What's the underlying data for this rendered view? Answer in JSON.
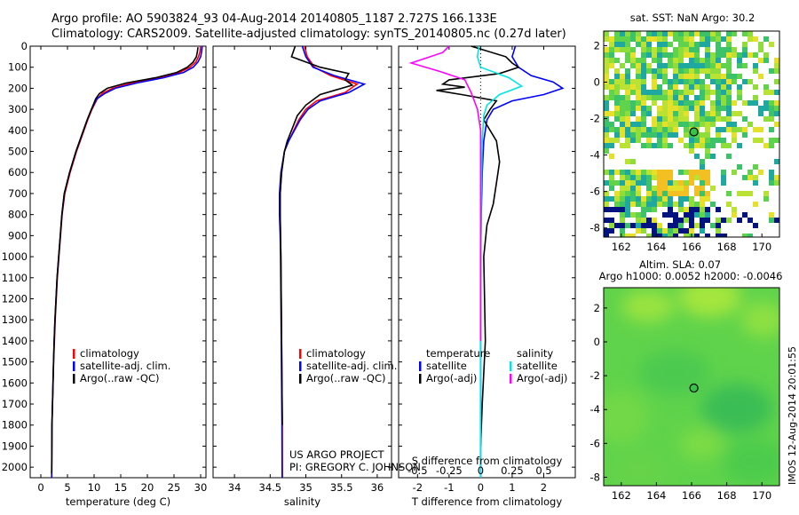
{
  "header": {
    "line1": "Argo profile: AO 5903824_93 04-Aug-2014 20140805_1187 2.727S 166.133E",
    "line2": "Climatology: CARS2009. Satellite-adjusted climatology: synTS_20140805.nc (0.27d later)"
  },
  "credit": {
    "line1": "US ARGO PROJECT",
    "line2": "PI: GREGORY C. JOHNSON"
  },
  "stamp": "IMOS 12-Aug-2014 20:01:55",
  "chart_data": [
    {
      "type": "line",
      "xlabel": "temperature (deg C)",
      "ylabel": "",
      "xlim": [
        -2,
        31
      ],
      "ylim": [
        2050,
        0
      ],
      "xticks": [
        0,
        5,
        10,
        15,
        20,
        25,
        30
      ],
      "yticks": [
        0,
        100,
        200,
        300,
        400,
        500,
        600,
        700,
        800,
        900,
        1000,
        1100,
        1200,
        1300,
        1400,
        1500,
        1600,
        1700,
        1800,
        1900,
        2000
      ],
      "legend": [
        "climatology",
        "satellite-adj. clim.",
        "Argo(..raw -QC)"
      ],
      "series": [
        {
          "color": "#ff0000",
          "x": [
            30.0,
            29.9,
            29.6,
            29.1,
            28.0,
            26.0,
            22.0,
            17.0,
            13.5,
            11.5,
            10.6,
            9.6,
            8.8,
            8.1,
            7.4,
            6.7,
            6.1,
            5.5,
            5.0,
            4.5,
            4.0,
            3.7,
            3.4,
            3.1,
            2.9,
            2.7,
            2.55,
            2.4,
            2.3,
            2.2,
            2.1,
            2.05
          ],
          "y": [
            0,
            25,
            50,
            75,
            100,
            125,
            150,
            175,
            200,
            225,
            250,
            300,
            350,
            400,
            450,
            500,
            550,
            600,
            650,
            700,
            800,
            900,
            1000,
            1100,
            1200,
            1300,
            1400,
            1500,
            1600,
            1700,
            1800,
            2050
          ]
        },
        {
          "color": "#0000ff",
          "x": [
            30.3,
            30.2,
            30.0,
            29.5,
            28.6,
            26.8,
            23.0,
            18.0,
            14.0,
            12.0,
            10.5,
            9.5,
            8.7,
            8.0,
            7.3,
            6.6,
            6.0,
            5.4,
            4.9,
            4.4,
            3.95,
            3.65,
            3.35,
            3.05,
            2.85,
            2.65,
            2.5,
            2.38,
            2.28,
            2.18,
            2.08,
            2.03
          ],
          "y": [
            0,
            25,
            50,
            75,
            100,
            125,
            150,
            175,
            200,
            225,
            250,
            300,
            350,
            400,
            450,
            500,
            550,
            600,
            650,
            700,
            800,
            900,
            1000,
            1100,
            1200,
            1300,
            1400,
            1500,
            1600,
            1700,
            1800,
            2050
          ]
        },
        {
          "color": "#000000",
          "x": [
            29.5,
            29.4,
            29.2,
            28.6,
            27.5,
            25.5,
            21.5,
            16.0,
            12.5,
            11.0,
            10.3,
            9.5,
            8.7,
            8.0,
            7.3,
            6.6,
            6.0,
            5.4,
            4.9,
            4.4,
            3.95,
            3.65,
            3.35,
            3.05,
            2.85,
            2.65,
            2.5,
            2.38,
            2.28,
            2.18,
            2.08,
            2.03
          ],
          "y": [
            5,
            25,
            50,
            75,
            100,
            125,
            150,
            175,
            200,
            225,
            250,
            300,
            350,
            400,
            450,
            500,
            550,
            600,
            650,
            700,
            800,
            900,
            1000,
            1100,
            1200,
            1300,
            1400,
            1500,
            1600,
            1700,
            1800,
            2030
          ]
        }
      ]
    },
    {
      "type": "line",
      "xlabel": "salinity",
      "ylabel": "",
      "xlim": [
        33.7,
        36.2
      ],
      "ylim": [
        2050,
        0
      ],
      "xticks": [
        34,
        34.5,
        35,
        35.5,
        36
      ],
      "legend": [
        "climatology",
        "satellite-adj. clim.",
        "Argo(..raw -QC)"
      ],
      "series": [
        {
          "color": "#ff0000",
          "x": [
            34.98,
            35.02,
            35.12,
            35.35,
            35.72,
            35.55,
            35.15,
            35.0,
            34.9,
            34.83,
            34.76,
            34.7,
            34.66,
            34.64,
            34.64,
            34.645,
            34.65,
            34.655,
            34.66,
            34.665,
            34.67,
            34.672
          ],
          "y": [
            0,
            50,
            100,
            140,
            180,
            220,
            260,
            300,
            350,
            400,
            450,
            500,
            600,
            700,
            800,
            900,
            1000,
            1200,
            1400,
            1600,
            1800,
            2050
          ]
        },
        {
          "color": "#0000ff",
          "x": [
            34.95,
            35.0,
            35.1,
            35.4,
            35.82,
            35.6,
            35.2,
            35.03,
            34.92,
            34.84,
            34.76,
            34.7,
            34.65,
            34.63,
            34.63,
            34.64,
            34.645,
            34.65,
            34.655,
            34.66,
            34.665,
            34.668
          ],
          "y": [
            0,
            50,
            100,
            140,
            180,
            220,
            260,
            300,
            350,
            400,
            450,
            500,
            600,
            700,
            800,
            900,
            1000,
            1200,
            1400,
            1600,
            1800,
            2050
          ]
        },
        {
          "color": "#000000",
          "x": [
            34.85,
            34.8,
            35.2,
            35.6,
            35.55,
            35.65,
            35.2,
            35.0,
            34.88,
            34.8,
            34.74,
            34.7,
            34.66,
            34.64,
            34.64,
            34.645,
            34.65,
            34.655,
            34.66,
            34.665,
            34.67
          ],
          "y": [
            0,
            50,
            100,
            130,
            160,
            185,
            230,
            280,
            330,
            400,
            450,
            500,
            600,
            700,
            800,
            900,
            1000,
            1200,
            1400,
            1600,
            1800
          ]
        }
      ]
    },
    {
      "type": "line",
      "xlabel": "T difference from climatology",
      "xlabel_top": "S difference from climatology",
      "ylabel": "",
      "xlim": [
        -2.6,
        3.0
      ],
      "ylim": [
        2050,
        0
      ],
      "xticks": [
        -2,
        -1,
        0,
        1,
        2
      ],
      "xticks_s": [
        -0.5,
        -0.25,
        0,
        0.25,
        0.5
      ],
      "xticklabels_s": [
        "-0.5",
        "-0.25",
        "0",
        "0.25",
        "0.5"
      ],
      "legend_headers": [
        "temperature",
        "salinity"
      ],
      "legend": [
        "satellite",
        "Argo(-adj)",
        "satellite",
        "Argo(-adj)"
      ],
      "series": [
        {
          "color": "#0000ff",
          "x": [
            1.1,
            1.0,
            1.2,
            1.6,
            2.3,
            2.6,
            2.0,
            1.0,
            0.4,
            0.2,
            0.1,
            0.05,
            0.02,
            0.0,
            0.0,
            0.0,
            0.0,
            0.0
          ],
          "y": [
            0,
            50,
            100,
            140,
            170,
            200,
            230,
            260,
            300,
            350,
            450,
            600,
            800,
            1000,
            1200,
            1500,
            1800,
            2050
          ]
        },
        {
          "color": "#000000",
          "x": [
            -0.3,
            0.8,
            1.0,
            1.2,
            0.6,
            -1.0,
            -1.2,
            -0.5,
            -1.4,
            -0.6,
            0.5,
            0.3,
            0.1,
            0.5,
            0.6,
            0.5,
            0.4,
            0.2,
            0.1,
            0.15,
            0.05,
            0.0
          ],
          "y": [
            0,
            50,
            80,
            100,
            130,
            160,
            180,
            195,
            210,
            230,
            260,
            300,
            350,
            450,
            550,
            650,
            750,
            850,
            1000,
            1400,
            1700,
            1900
          ]
        },
        {
          "color": "#00e5e5",
          "x": [
            -0.05,
            -0.1,
            0.0,
            0.9,
            1.3,
            0.6,
            0.2,
            0.1,
            0.05,
            0.02,
            0.0,
            0.0
          ],
          "y": [
            0,
            50,
            100,
            150,
            190,
            230,
            280,
            330,
            450,
            700,
            1200,
            2050
          ]
        },
        {
          "color": "#ff00ff",
          "x": [
            -1.0,
            -1.2,
            -2.2,
            -1.3,
            -0.5,
            -0.3,
            -0.1,
            0.0,
            0.0,
            0.0
          ],
          "y": [
            0,
            30,
            80,
            120,
            160,
            220,
            300,
            400,
            800,
            1400
          ]
        }
      ]
    },
    {
      "type": "heatmap",
      "title": "sat. SST: NaN Argo: 30.2",
      "xlim": [
        161,
        171
      ],
      "ylim": [
        -8.5,
        2.8
      ],
      "xticks": [
        162,
        164,
        166,
        168,
        170
      ],
      "yticks": [
        -8,
        -6,
        -4,
        -2,
        0,
        2
      ],
      "argo_position": [
        166.133,
        -2.727
      ]
    },
    {
      "type": "heatmap",
      "title": "Altim. SLA: 0.07",
      "subtitle": "Argo h1000: 0.0052 h2000: -0.0046",
      "xlim": [
        161,
        171
      ],
      "ylim": [
        -8.5,
        3.2
      ],
      "xticks": [
        162,
        164,
        166,
        168,
        170
      ],
      "yticks": [
        -8,
        -6,
        -4,
        -2,
        0,
        2
      ],
      "argo_position": [
        166.133,
        -2.727
      ]
    }
  ]
}
